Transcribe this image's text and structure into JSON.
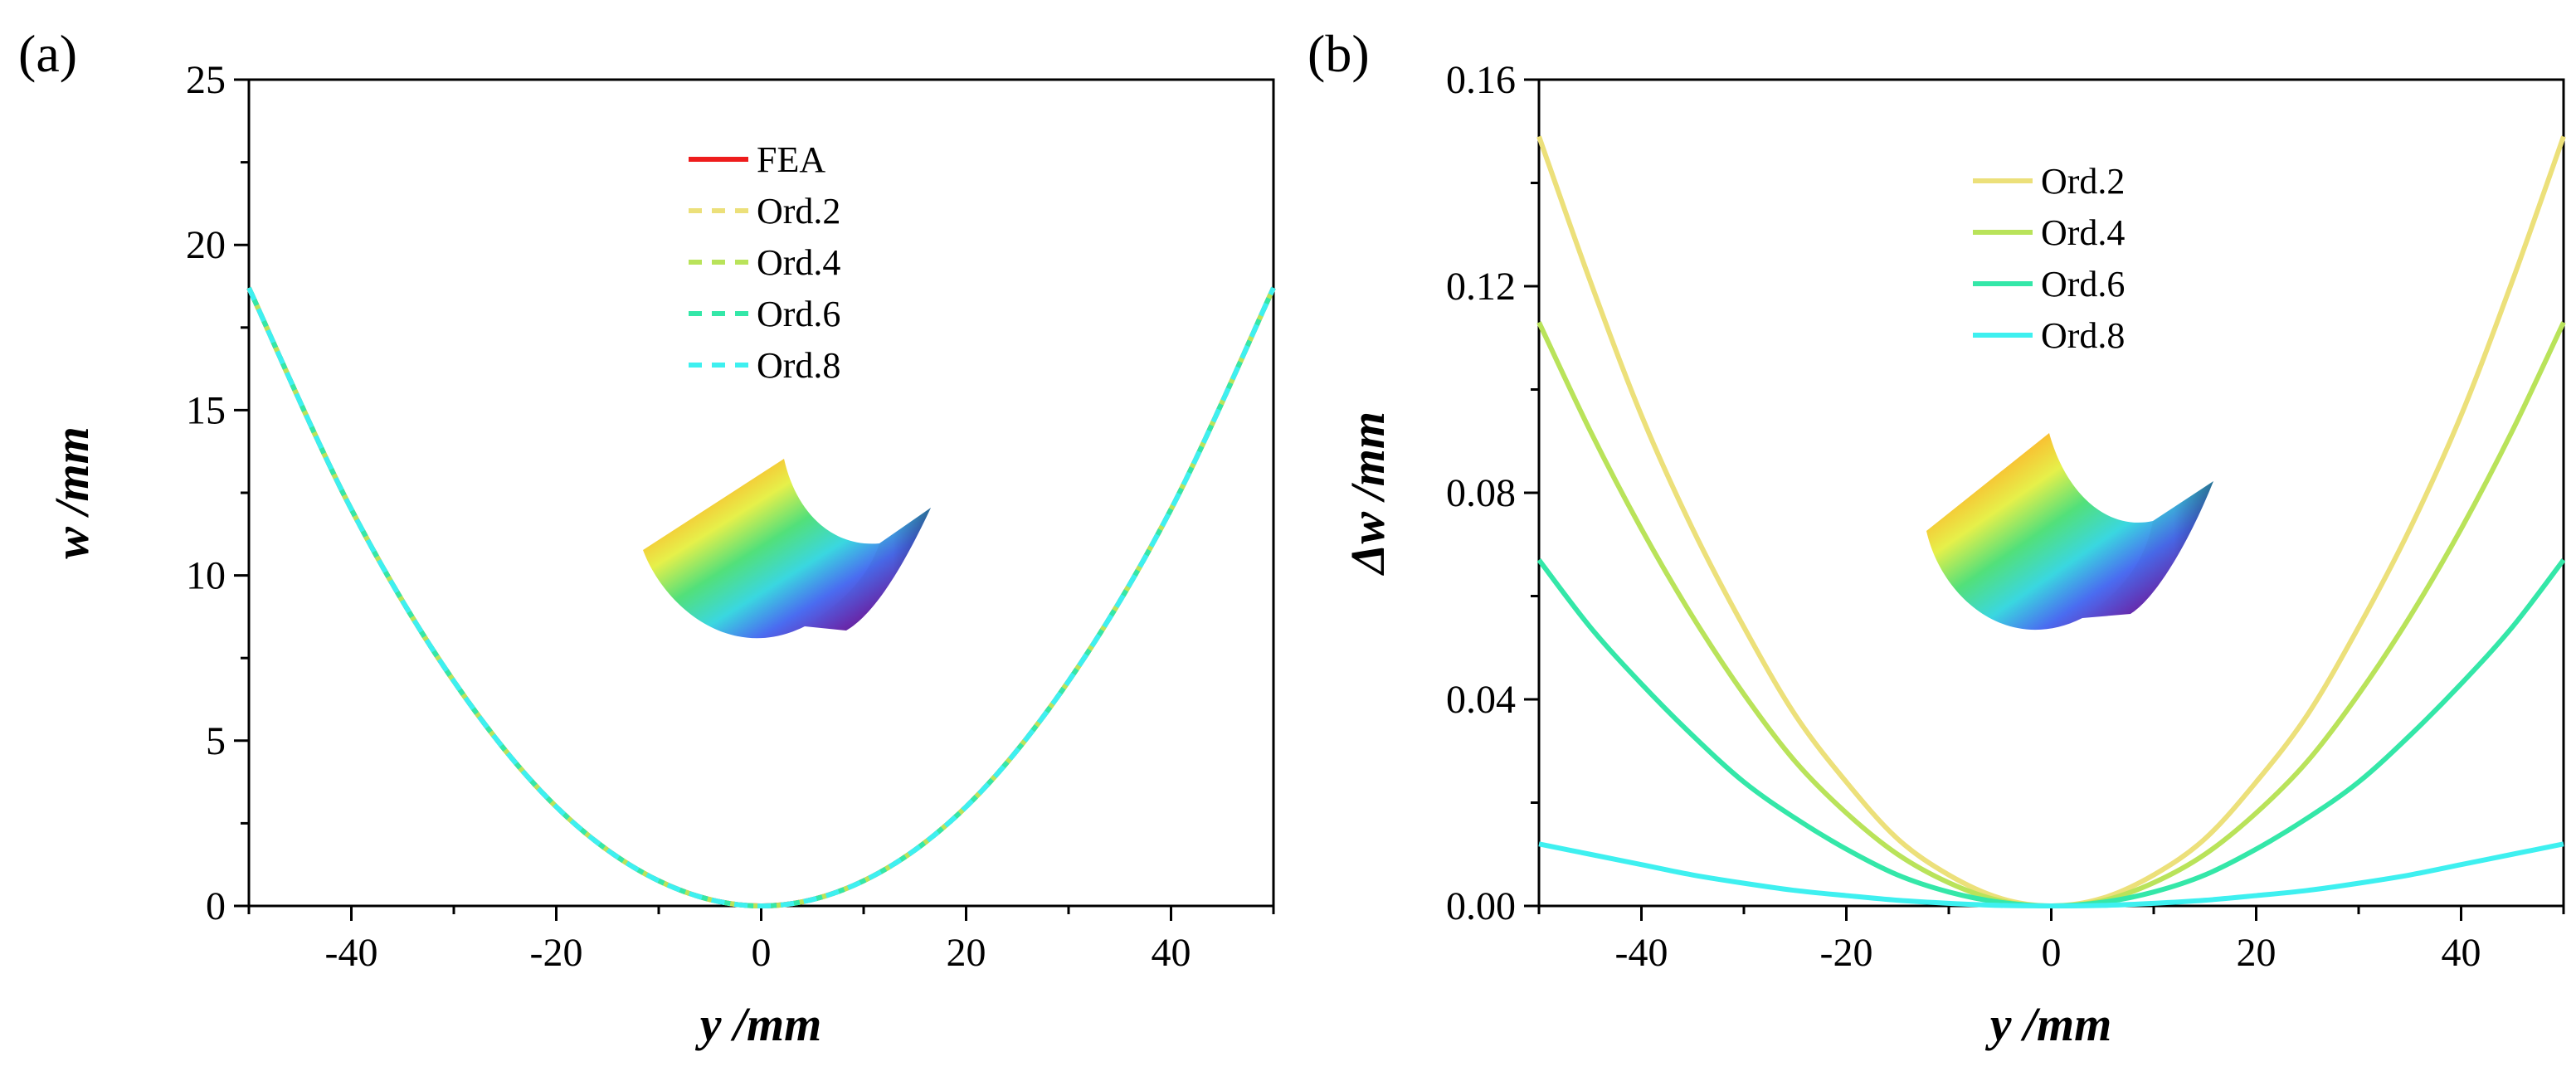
{
  "colors": {
    "FEA": "#ee1c1c",
    "Ord.2": "#ece07a",
    "Ord.4": "#b9e35a",
    "Ord.6": "#34e7a8",
    "Ord.8": "#3ef0f0"
  },
  "chart_data": [
    {
      "panel_label": "(a)",
      "type": "line",
      "title": "",
      "xlabel": "y /mm",
      "ylabel": "w /mm",
      "xlim": [
        -50,
        50
      ],
      "ylim": [
        0,
        25
      ],
      "xticks": [
        -40,
        -20,
        0,
        20,
        40
      ],
      "yticks": [
        0,
        5,
        10,
        15,
        20,
        25
      ],
      "grid": false,
      "legend_position": "top-center",
      "inset": "colored-deformed-plate-surface",
      "x": [
        -50,
        -40,
        -30,
        -20,
        -10,
        0,
        10,
        20,
        30,
        40,
        50
      ],
      "series": [
        {
          "name": "FEA",
          "style": "solid",
          "values": [
            18.7,
            12.0,
            6.8,
            3.0,
            0.76,
            0.0,
            0.76,
            3.0,
            6.8,
            12.0,
            18.7
          ]
        },
        {
          "name": "Ord.2",
          "style": "dashed",
          "values": [
            18.7,
            12.0,
            6.8,
            3.0,
            0.76,
            0.0,
            0.76,
            3.0,
            6.8,
            12.0,
            18.7
          ]
        },
        {
          "name": "Ord.4",
          "style": "dashed",
          "values": [
            18.7,
            12.0,
            6.8,
            3.0,
            0.76,
            0.0,
            0.76,
            3.0,
            6.8,
            12.0,
            18.7
          ]
        },
        {
          "name": "Ord.6",
          "style": "dashed",
          "values": [
            18.7,
            12.0,
            6.8,
            3.0,
            0.76,
            0.0,
            0.76,
            3.0,
            6.8,
            12.0,
            18.7
          ]
        },
        {
          "name": "Ord.8",
          "style": "dashed",
          "values": [
            18.7,
            12.0,
            6.8,
            3.0,
            0.76,
            0.0,
            0.76,
            3.0,
            6.8,
            12.0,
            18.7
          ]
        }
      ]
    },
    {
      "panel_label": "(b)",
      "type": "line",
      "title": "",
      "xlabel": "y /mm",
      "ylabel": "Δw /mm",
      "xlim": [
        -50,
        50
      ],
      "ylim": [
        0,
        0.16
      ],
      "xticks": [
        -40,
        -20,
        0,
        20,
        40
      ],
      "yticks": [
        "0.00",
        "0.04",
        "0.08",
        "0.12",
        "0.16"
      ],
      "grid": false,
      "legend_position": "top-center",
      "inset": "colored-deformed-plate-surface",
      "x": [
        -50,
        -45,
        -40,
        -35,
        -30,
        -25,
        -20,
        -15,
        -10,
        -5,
        0,
        5,
        10,
        15,
        20,
        25,
        30,
        35,
        40,
        45,
        50
      ],
      "series": [
        {
          "name": "Ord.2",
          "style": "solid",
          "values": [
            0.149,
            0.121,
            0.095,
            0.073,
            0.054,
            0.037,
            0.024,
            0.013,
            0.006,
            0.0015,
            0.0,
            0.0015,
            0.006,
            0.013,
            0.024,
            0.037,
            0.054,
            0.073,
            0.095,
            0.121,
            0.149
          ]
        },
        {
          "name": "Ord.4",
          "style": "solid",
          "values": [
            0.113,
            0.092,
            0.073,
            0.056,
            0.041,
            0.028,
            0.018,
            0.01,
            0.0045,
            0.001,
            0.0,
            0.001,
            0.0045,
            0.01,
            0.018,
            0.028,
            0.041,
            0.056,
            0.073,
            0.092,
            0.113
          ]
        },
        {
          "name": "Ord.6",
          "style": "solid",
          "values": [
            0.067,
            0.054,
            0.043,
            0.033,
            0.024,
            0.017,
            0.011,
            0.006,
            0.0027,
            0.0007,
            0.0,
            0.0007,
            0.0027,
            0.006,
            0.011,
            0.017,
            0.024,
            0.033,
            0.043,
            0.054,
            0.067
          ]
        },
        {
          "name": "Ord.8",
          "style": "solid",
          "values": [
            0.012,
            0.01,
            0.008,
            0.006,
            0.0044,
            0.003,
            0.002,
            0.0011,
            0.0005,
            0.0001,
            0.0,
            0.0001,
            0.0005,
            0.0011,
            0.002,
            0.003,
            0.0044,
            0.006,
            0.008,
            0.01,
            0.012
          ]
        }
      ]
    }
  ]
}
